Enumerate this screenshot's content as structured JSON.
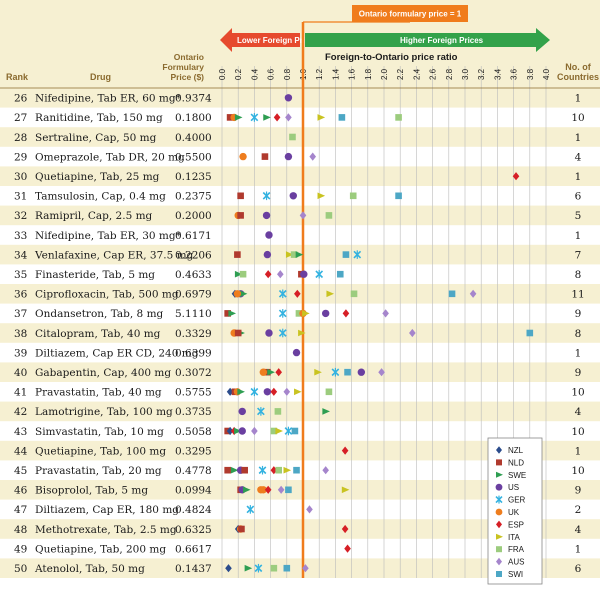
{
  "headers": {
    "rank": "Rank",
    "drug": "Drug",
    "price_line1": "Ontario",
    "price_line2": "Formulary",
    "price_line3": "Price ($)",
    "countries_line1": "No. of",
    "countries_line2": "Countries"
  },
  "annotations": {
    "callout": "Ontario formulary price = 1",
    "lower": "Lower Foreign Prices",
    "higher": "Higher Foreign Prices"
  },
  "colors": {
    "header_bg": "#f6f0d2",
    "row_alt": "#f6f0d2",
    "grid": "#bbbbbb",
    "ref_line": "#f07c1c",
    "lower_arrow": "#e64a2e",
    "higher_arrow": "#33a24a",
    "callout_bg": "#f07c1c"
  },
  "chart_data": {
    "type": "scatter",
    "xlabel": "Foreign-to-Ontario price ratio",
    "xlim": [
      0,
      4
    ],
    "xticks": [
      "0.0",
      "0.2",
      "0.4",
      "0.6",
      "0.8",
      "1.0",
      "1.2",
      "1.4",
      "1.6",
      "1.8",
      "2.0",
      "2.2",
      "2.4",
      "2.6",
      "2.8",
      "3.0",
      "3.2",
      "3.4",
      "3.6",
      "3.8",
      "4.0"
    ],
    "reference_value": 1.0,
    "countries": [
      {
        "code": "NZL",
        "color": "#2b4c8c",
        "shape": "diamond"
      },
      {
        "code": "NLD",
        "color": "#b03a2e",
        "shape": "square"
      },
      {
        "code": "SWE",
        "color": "#2e9e52",
        "shape": "triangle"
      },
      {
        "code": "US",
        "color": "#6a3fa0",
        "shape": "circle"
      },
      {
        "code": "GER",
        "color": "#33b2e0",
        "shape": "x"
      },
      {
        "code": "UK",
        "color": "#ee7d1e",
        "shape": "circle"
      },
      {
        "code": "ESP",
        "color": "#d61f26",
        "shape": "diamond"
      },
      {
        "code": "ITA",
        "color": "#c9c321",
        "shape": "triangle"
      },
      {
        "code": "FRA",
        "color": "#9ccc7e",
        "shape": "square"
      },
      {
        "code": "AUS",
        "color": "#a585cc",
        "shape": "diamond"
      },
      {
        "code": "SWI",
        "color": "#4da7c5",
        "shape": "square"
      }
    ],
    "rows": [
      {
        "rank": "26",
        "drug": "Nifedipine, Tab ER, 60 mg*",
        "price": "0.9374",
        "n": "1",
        "points": [
          [
            "US",
            0.82
          ]
        ]
      },
      {
        "rank": "27",
        "drug": "Ranitidine, Tab, 150 mg",
        "price": "0.1800",
        "n": "10",
        "points": [
          [
            "NLD",
            0.1
          ],
          [
            "UK",
            0.15
          ],
          [
            "SWE",
            0.2
          ],
          [
            "GER",
            0.4
          ],
          [
            "SWE",
            0.55
          ],
          [
            "ESP",
            0.68
          ],
          [
            "AUS",
            0.82
          ],
          [
            "ITA",
            1.22
          ],
          [
            "SWI",
            1.48
          ],
          [
            "FRA",
            2.18
          ]
        ]
      },
      {
        "rank": "28",
        "drug": "Sertraline, Cap, 50 mg",
        "price": "0.4000",
        "n": "1",
        "points": [
          [
            "FRA",
            0.87
          ]
        ]
      },
      {
        "rank": "29",
        "drug": "Omeprazole, Tab DR, 20 mg",
        "price": "0.5500",
        "n": "4",
        "points": [
          [
            "UK",
            0.26
          ],
          [
            "NLD",
            0.53
          ],
          [
            "US",
            0.82
          ],
          [
            "AUS",
            1.12
          ]
        ]
      },
      {
        "rank": "30",
        "drug": "Quetiapine, Tab, 25 mg",
        "price": "0.1235",
        "n": "1",
        "points": [
          [
            "ESP",
            3.63
          ]
        ]
      },
      {
        "rank": "31",
        "drug": "Tamsulosin, Cap, 0.4 mg",
        "price": "0.2375",
        "n": "6",
        "points": [
          [
            "NLD",
            0.23
          ],
          [
            "GER",
            0.55
          ],
          [
            "US",
            0.88
          ],
          [
            "ITA",
            1.22
          ],
          [
            "FRA",
            1.62
          ],
          [
            "SWI",
            2.18
          ]
        ]
      },
      {
        "rank": "32",
        "drug": "Ramipril, Cap, 2.5 mg",
        "price": "0.2000",
        "n": "5",
        "points": [
          [
            "UK",
            0.2
          ],
          [
            "NLD",
            0.23
          ],
          [
            "US",
            0.55
          ],
          [
            "AUS",
            1.0
          ],
          [
            "FRA",
            1.32
          ]
        ]
      },
      {
        "rank": "33",
        "drug": "Nifedipine, Tab ER, 30 mg*",
        "price": "0.6171",
        "n": "1",
        "points": [
          [
            "US",
            0.58
          ]
        ]
      },
      {
        "rank": "34",
        "drug": "Venlafaxine, Cap ER, 37.5 mg",
        "price": "0.2206",
        "n": "7",
        "points": [
          [
            "NLD",
            0.19
          ],
          [
            "US",
            0.56
          ],
          [
            "ITA",
            0.83
          ],
          [
            "FRA",
            0.89
          ],
          [
            "SWE",
            0.95
          ],
          [
            "SWI",
            1.53
          ],
          [
            "GER",
            1.67
          ]
        ]
      },
      {
        "rank": "35",
        "drug": "Finasteride, Tab, 5 mg",
        "price": "0.4633",
        "n": "8",
        "points": [
          [
            "SWE",
            0.2
          ],
          [
            "FRA",
            0.26
          ],
          [
            "ESP",
            0.57
          ],
          [
            "AUS",
            0.72
          ],
          [
            "NLD",
            0.98
          ],
          [
            "US",
            1.01
          ],
          [
            "GER",
            1.2
          ],
          [
            "SWI",
            1.46
          ]
        ]
      },
      {
        "rank": "36",
        "drug": "Ciprofloxacin, Tab, 500 mg",
        "price": "0.6979",
        "n": "11",
        "points": [
          [
            "NZL",
            0.16
          ],
          [
            "NLD",
            0.2
          ],
          [
            "US",
            0.23
          ],
          [
            "SWE",
            0.26
          ],
          [
            "GER",
            0.75
          ],
          [
            "ESP",
            0.93
          ],
          [
            "ITA",
            1.33
          ],
          [
            "FRA",
            1.63
          ],
          [
            "SWI",
            2.84
          ],
          [
            "AUS",
            3.1
          ],
          [
            "UK",
            0.19
          ]
        ]
      },
      {
        "rank": "37",
        "drug": "Ondansetron, Tab, 8 mg",
        "price": "5.1110",
        "n": "9",
        "points": [
          [
            "NLD",
            0.07
          ],
          [
            "SWE",
            0.12
          ],
          [
            "GER",
            0.75
          ],
          [
            "FRA",
            0.95
          ],
          [
            "UK",
            1.0
          ],
          [
            "ITA",
            1.03
          ],
          [
            "US",
            1.28
          ],
          [
            "ESP",
            1.53
          ],
          [
            "AUS",
            2.02
          ]
        ]
      },
      {
        "rank": "38",
        "drug": "Citalopram, Tab, 40 mg",
        "price": "0.3329",
        "n": "8",
        "points": [
          [
            "UK",
            0.15
          ],
          [
            "SWE",
            0.23
          ],
          [
            "NLD",
            0.2
          ],
          [
            "US",
            0.58
          ],
          [
            "GER",
            0.75
          ],
          [
            "ITA",
            0.98
          ],
          [
            "AUS",
            2.35
          ],
          [
            "SWI",
            3.8
          ]
        ]
      },
      {
        "rank": "39",
        "drug": "Diltiazem, Cap ER CD, 240 mg",
        "price": "0.6399",
        "n": "1",
        "points": [
          [
            "US",
            0.92
          ]
        ]
      },
      {
        "rank": "40",
        "drug": "Gabapentin, Cap, 400 mg",
        "price": "0.3072",
        "n": "9",
        "points": [
          [
            "NLD",
            0.56
          ],
          [
            "UK",
            0.51
          ],
          [
            "SWE",
            0.6
          ],
          [
            "ESP",
            0.7
          ],
          [
            "ITA",
            1.18
          ],
          [
            "GER",
            1.4
          ],
          [
            "SWI",
            1.55
          ],
          [
            "US",
            1.72
          ],
          [
            "AUS",
            1.97
          ]
        ]
      },
      {
        "rank": "41",
        "drug": "Pravastatin, Tab, 40 mg",
        "price": "0.5755",
        "n": "10",
        "points": [
          [
            "NZL",
            0.1
          ],
          [
            "NLD",
            0.16
          ],
          [
            "UK",
            0.19
          ],
          [
            "SWE",
            0.23
          ],
          [
            "GER",
            0.4
          ],
          [
            "US",
            0.56
          ],
          [
            "ESP",
            0.64
          ],
          [
            "AUS",
            0.8
          ],
          [
            "ITA",
            0.93
          ],
          [
            "FRA",
            1.32
          ]
        ]
      },
      {
        "rank": "42",
        "drug": "Lamotrigine, Tab, 100 mg",
        "price": "0.3735",
        "n": "4",
        "points": [
          [
            "US",
            0.25
          ],
          [
            "GER",
            0.48
          ],
          [
            "FRA",
            0.69
          ],
          [
            "SWE",
            1.28
          ]
        ]
      },
      {
        "rank": "43",
        "drug": "Simvastatin, Tab, 10 mg",
        "price": "0.5058",
        "n": "10",
        "points": [
          [
            "NLD",
            0.07
          ],
          [
            "NZL",
            0.1
          ],
          [
            "ESP",
            0.15
          ],
          [
            "SWE",
            0.19
          ],
          [
            "US",
            0.25
          ],
          [
            "AUS",
            0.4
          ],
          [
            "FRA",
            0.64
          ],
          [
            "ITA",
            0.7
          ],
          [
            "GER",
            0.82
          ],
          [
            "SWI",
            0.9
          ]
        ]
      },
      {
        "rank": "44",
        "drug": "Quetiapine, Tab, 100 mg",
        "price": "0.3295",
        "n": "1",
        "points": [
          [
            "ESP",
            1.52
          ]
        ]
      },
      {
        "rank": "45",
        "drug": "Pravastatin, Tab, 20 mg",
        "price": "0.4778",
        "n": "10",
        "points": [
          [
            "NLD",
            0.07
          ],
          [
            "SWE",
            0.15
          ],
          [
            "US",
            0.23
          ],
          [
            "NLD",
            0.28
          ],
          [
            "GER",
            0.5
          ],
          [
            "ESP",
            0.64
          ],
          [
            "FRA",
            0.7
          ],
          [
            "ITA",
            0.8
          ],
          [
            "SWI",
            0.92
          ],
          [
            "AUS",
            1.28
          ]
        ]
      },
      {
        "rank": "46",
        "drug": "Bisoprolol, Tab, 5 mg",
        "price": "0.0994",
        "n": "9",
        "points": [
          [
            "NLD",
            0.23
          ],
          [
            "US",
            0.25
          ],
          [
            "SWE",
            0.3
          ],
          [
            "UK",
            0.48
          ],
          [
            "UK",
            0.51
          ],
          [
            "ESP",
            0.57
          ],
          [
            "AUS",
            0.73
          ],
          [
            "SWI",
            0.82
          ],
          [
            "ITA",
            1.52
          ]
        ]
      },
      {
        "rank": "47",
        "drug": "Diltiazem, Cap ER, 180 mg",
        "price": "0.4824",
        "n": "2",
        "points": [
          [
            "GER",
            0.35
          ],
          [
            "AUS",
            1.08
          ]
        ]
      },
      {
        "rank": "48",
        "drug": "Methotrexate, Tab, 2.5 mg",
        "price": "0.6325",
        "n": "4",
        "points": [
          [
            "NZL",
            0.2
          ],
          [
            "UK",
            0.23
          ],
          [
            "NLD",
            0.24
          ],
          [
            "ESP",
            1.52
          ]
        ]
      },
      {
        "rank": "49",
        "drug": "Quetiapine, Tab, 200 mg",
        "price": "0.6617",
        "n": "1",
        "points": [
          [
            "ESP",
            1.55
          ]
        ]
      },
      {
        "rank": "50",
        "drug": "Atenolol, Tab, 50 mg",
        "price": "0.1437",
        "n": "6",
        "points": [
          [
            "NZL",
            0.08
          ],
          [
            "SWE",
            0.32
          ],
          [
            "GER",
            0.45
          ],
          [
            "FRA",
            0.64
          ],
          [
            "SWI",
            0.8
          ],
          [
            "AUS",
            1.03
          ]
        ]
      }
    ]
  }
}
